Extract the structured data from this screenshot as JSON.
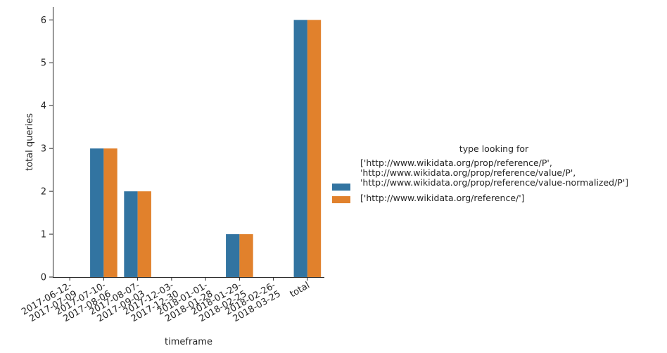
{
  "chart_data": {
    "type": "bar",
    "xlabel": "timeframe",
    "ylabel": "total queries",
    "ylim": [
      0,
      6.3
    ],
    "yticks": [
      0,
      1,
      2,
      3,
      4,
      5,
      6
    ],
    "categories": [
      "2017-06-12-\n2017-07-09",
      "2017-07-10-\n2017-08-06",
      "2017-08-07-\n2017-09-03",
      "2017-12-03-\n2017-12-30",
      "2018-01-01-\n2018-01-28",
      "2018-01-29-\n2018-02-25",
      "2018-02-26-\n2018-03-25",
      "total"
    ],
    "series": [
      {
        "name": "['http://www.wikidata.org/prop/reference/P',\n'http://www.wikidata.org/prop/reference/value/P',\n'http://www.wikidata.org/prop/reference/value-normalized/P']",
        "color": "#3274a1",
        "values": [
          0,
          3,
          2,
          0,
          0,
          1,
          0,
          6
        ]
      },
      {
        "name": "['http://www.wikidata.org/reference/']",
        "color": "#e1812c",
        "values": [
          0,
          3,
          2,
          0,
          0,
          1,
          0,
          6
        ]
      }
    ],
    "legend": {
      "title": "type looking for",
      "placement": "right"
    },
    "grid": false
  }
}
